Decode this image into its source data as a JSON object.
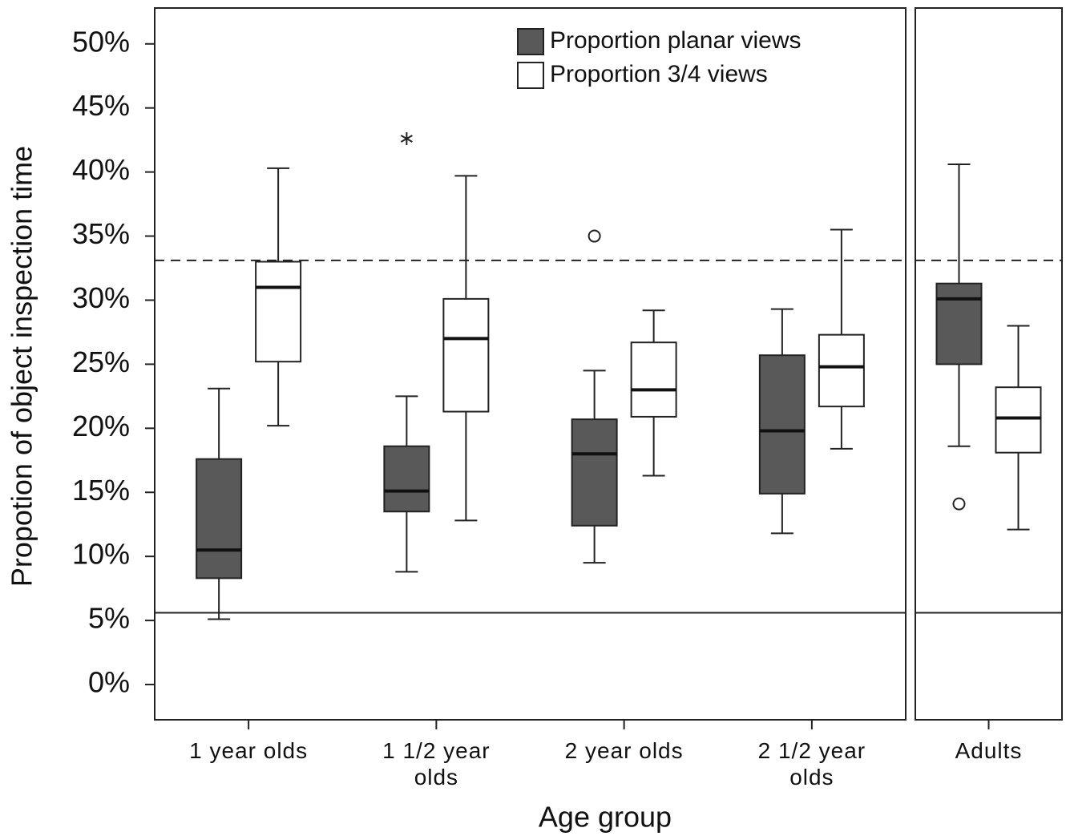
{
  "chart_data": [
    {
      "type": "boxplot",
      "ylabel": "Propotion of object inspection time",
      "xlabel": "Age group",
      "categories": [
        "1 year olds",
        "1 1/2 year olds",
        "2 year olds",
        "2 1/2 year olds"
      ],
      "ylim": [
        -2.75,
        52.8
      ],
      "yticks": [
        {
          "value": 0,
          "label": "0%"
        },
        {
          "value": 5,
          "label": "5%"
        },
        {
          "value": 10,
          "label": "10%"
        },
        {
          "value": 15,
          "label": "15%"
        },
        {
          "value": 20,
          "label": "20%"
        },
        {
          "value": 25,
          "label": "25%"
        },
        {
          "value": 30,
          "label": "30%"
        },
        {
          "value": 35,
          "label": "35%"
        },
        {
          "value": 40,
          "label": "40%"
        },
        {
          "value": 45,
          "label": "45%"
        },
        {
          "value": 50,
          "label": "50%"
        }
      ],
      "legend": "top-right",
      "reference_lines": [
        {
          "value": 33.1,
          "style": "dashed"
        },
        {
          "value": 5.6,
          "style": "solid"
        }
      ],
      "series": [
        {
          "name": "Proportion planar views",
          "color": "#595959",
          "boxes": [
            {
              "min": 5.1,
              "q1": 8.3,
              "median": 10.5,
              "q3": 17.6,
              "max": 23.1
            },
            {
              "min": 8.8,
              "q1": 13.5,
              "median": 15.1,
              "q3": 18.6,
              "max": 22.5
            },
            {
              "min": 9.5,
              "q1": 12.4,
              "median": 18.0,
              "q3": 20.7,
              "max": 24.5
            },
            {
              "min": 11.8,
              "q1": 14.9,
              "median": 19.8,
              "q3": 25.7,
              "max": 29.3
            }
          ],
          "outliers": [
            [],
            [
              {
                "value": 42.6,
                "marker": "star"
              }
            ],
            [
              {
                "value": 35.0,
                "marker": "circle"
              }
            ],
            []
          ]
        },
        {
          "name": "Proportion 3/4 views",
          "color": "#ffffff",
          "boxes": [
            {
              "min": 20.2,
              "q1": 25.2,
              "median": 31.0,
              "q3": 33.0,
              "max": 40.3
            },
            {
              "min": 12.8,
              "q1": 21.3,
              "median": 27.0,
              "q3": 30.1,
              "max": 39.7
            },
            {
              "min": 16.3,
              "q1": 20.9,
              "median": 23.0,
              "q3": 26.7,
              "max": 29.2
            },
            {
              "min": 18.4,
              "q1": 21.7,
              "median": 24.8,
              "q3": 27.3,
              "max": 35.5
            }
          ],
          "outliers": [
            [],
            [],
            [],
            []
          ]
        }
      ]
    },
    {
      "type": "boxplot",
      "categories": [
        "Adults"
      ],
      "ylim": [
        -2.75,
        52.8
      ],
      "reference_lines": [
        {
          "value": 33.1,
          "style": "dashed"
        },
        {
          "value": 5.6,
          "style": "solid"
        }
      ],
      "series": [
        {
          "color": "#595959",
          "boxes": [
            {
              "min": 18.6,
              "q1": 25.0,
              "median": 30.1,
              "q3": 31.3,
              "max": 40.6
            }
          ],
          "outliers": [
            [
              {
                "value": 14.1,
                "marker": "circle"
              }
            ]
          ]
        },
        {
          "color": "#ffffff",
          "boxes": [
            {
              "min": 12.1,
              "q1": 18.1,
              "median": 20.8,
              "q3": 23.2,
              "max": 28.0
            }
          ],
          "outliers": [
            []
          ]
        }
      ]
    }
  ]
}
